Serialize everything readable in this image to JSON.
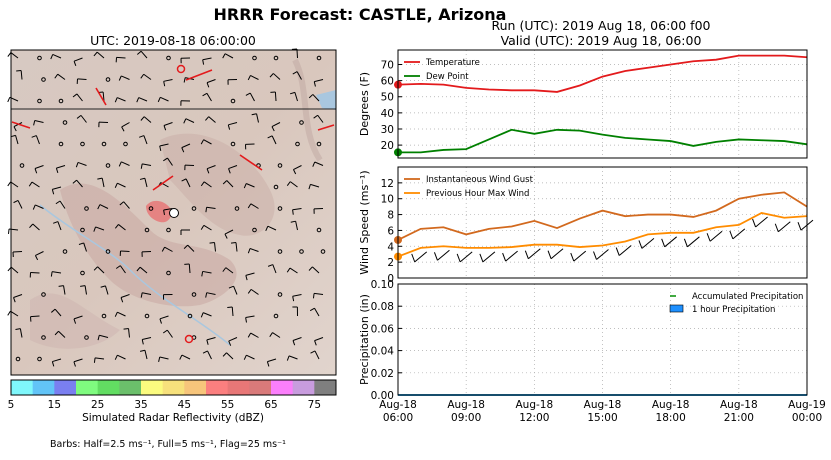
{
  "suptitle": "HRRR Forecast: CASTLE, Arizona",
  "map": {
    "title": "UTC: 2019-08-18 06:00:00",
    "colorbar_label": "Simulated Radar Reflectivity (dBZ)",
    "colorbar_ticks": [
      "5",
      "15",
      "25",
      "35",
      "45",
      "55",
      "65",
      "75"
    ],
    "colorbar_colors": [
      "#7ff7fb",
      "#62c4f7",
      "#7a7ff0",
      "#7ffb7f",
      "#62dd62",
      "#6bbf6b",
      "#fbfb7f",
      "#f7e17c",
      "#f7c57b",
      "#fb7f7f",
      "#e87777",
      "#d97a7a",
      "#fb7ffb",
      "#c89cde",
      "#7f7f7f"
    ],
    "barbs_note": "Barbs: Half=2.5 ms⁻¹, Full=5 ms⁻¹, Flag=25 ms⁻¹"
  },
  "header": {
    "run": "Run (UTC): 2019 Aug 18, 06:00 f00",
    "valid": "Valid (UTC): 2019 Aug 18, 06:00"
  },
  "x_ticks": [
    "Aug-18\n06:00",
    "Aug-18\n09:00",
    "Aug-18\n12:00",
    "Aug-18\n15:00",
    "Aug-18\n18:00",
    "Aug-18\n21:00",
    "Aug-19\n00:00"
  ],
  "chart_data": [
    {
      "type": "line",
      "ylabel": "Degrees (F)",
      "ylim": [
        12,
        79
      ],
      "yticks": [
        20,
        30,
        40,
        50,
        60,
        70
      ],
      "xlim": [
        0,
        18
      ],
      "grid": true,
      "legend_position": "top-left",
      "series": [
        {
          "name": "Temperature",
          "color": "#e31a1c",
          "x": [
            0,
            1,
            2,
            3,
            4,
            5,
            6,
            7,
            8,
            9,
            10,
            11,
            12,
            13,
            14,
            15,
            16,
            17,
            18
          ],
          "values": [
            57.5,
            58,
            57.5,
            55.5,
            54.5,
            54,
            54,
            53,
            57,
            62.5,
            66,
            68,
            70,
            72,
            73,
            75.5,
            75.5,
            75.5,
            74.5
          ]
        },
        {
          "name": "Dew Point",
          "color": "#008000",
          "x": [
            0,
            1,
            2,
            3,
            4,
            5,
            6,
            7,
            8,
            9,
            10,
            11,
            12,
            13,
            14,
            15,
            16,
            17,
            18
          ],
          "values": [
            15.5,
            15.5,
            17,
            17.5,
            23.5,
            29.5,
            27,
            29.5,
            29,
            26.5,
            24.5,
            23.5,
            22.5,
            19.5,
            22,
            23.5,
            23,
            22.5,
            20.5
          ]
        }
      ]
    },
    {
      "type": "line",
      "ylabel": "Wind Speed (ms⁻¹)",
      "ylim": [
        0,
        14
      ],
      "yticks": [
        0,
        2,
        4,
        6,
        8,
        10,
        12
      ],
      "xlim": [
        0,
        18
      ],
      "grid": true,
      "legend_position": "top-left",
      "series": [
        {
          "name": "Instantaneous Wind Gust",
          "color": "#d2691e",
          "x": [
            0,
            1,
            2,
            3,
            4,
            5,
            6,
            7,
            8,
            9,
            10,
            11,
            12,
            13,
            14,
            15,
            16,
            17,
            18
          ],
          "values": [
            4.8,
            6.2,
            6.4,
            5.5,
            6.2,
            6.5,
            7.2,
            6.3,
            7.5,
            8.5,
            7.8,
            8.0,
            8.0,
            7.7,
            8.5,
            10.0,
            10.5,
            10.8,
            9.0
          ]
        },
        {
          "name": "Previous Hour Max Wind",
          "color": "#ff8c00",
          "x": [
            0,
            1,
            2,
            3,
            4,
            5,
            6,
            7,
            8,
            9,
            10,
            11,
            12,
            13,
            14,
            15,
            16,
            17,
            18
          ],
          "values": [
            2.7,
            3.8,
            4.0,
            3.8,
            3.8,
            3.9,
            4.2,
            4.2,
            3.9,
            4.1,
            4.6,
            5.5,
            5.7,
            5.7,
            6.4,
            6.7,
            8.2,
            7.6,
            7.8
          ]
        }
      ]
    },
    {
      "type": "area",
      "ylabel": "Precipitation (in)",
      "ylim": [
        0,
        0.1
      ],
      "yticks": [
        "0.00",
        "0.02",
        "0.04",
        "0.06",
        "0.08",
        "0.10"
      ],
      "xlim": [
        0,
        18
      ],
      "grid": true,
      "legend_position": "top-right",
      "series": [
        {
          "name": "Accumulated Precipitation",
          "color": "#2ca02c",
          "x": [
            0,
            1,
            2,
            3,
            4,
            5,
            6,
            7,
            8,
            9,
            10,
            11,
            12,
            13,
            14,
            15,
            16,
            17,
            18
          ],
          "values": [
            0,
            0,
            0,
            0,
            0,
            0,
            0,
            0,
            0,
            0,
            0,
            0,
            0,
            0,
            0,
            0,
            0,
            0,
            0
          ]
        },
        {
          "name": "1 hour Precipitation",
          "color": "#1e90ff",
          "x": [
            0,
            1,
            2,
            3,
            4,
            5,
            6,
            7,
            8,
            9,
            10,
            11,
            12,
            13,
            14,
            15,
            16,
            17,
            18
          ],
          "values": [
            0,
            0,
            0,
            0,
            0,
            0,
            0,
            0,
            0,
            0,
            0,
            0,
            0,
            0,
            0,
            0,
            0,
            0,
            0
          ]
        }
      ]
    }
  ]
}
